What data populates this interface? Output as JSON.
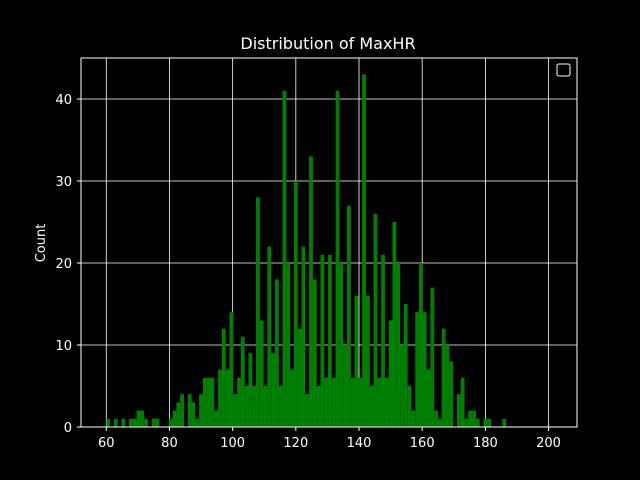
{
  "chart_data": {
    "type": "bar",
    "title": "Distribution of MaxHR",
    "xlabel": "",
    "ylabel": "Count",
    "xlim": [
      52,
      209
    ],
    "ylim": [
      0,
      45
    ],
    "xticks": [
      "60",
      "80",
      "100",
      "120",
      "140",
      "160",
      "180",
      "200"
    ],
    "yticks": [
      "0",
      "10",
      "20",
      "30",
      "40"
    ],
    "grid": true,
    "legend": "top-right",
    "colors": {
      "background": "#000000",
      "bar": "#008000",
      "axes": "#ffffff",
      "grid": "#ffffff"
    },
    "bin_width": 1.2,
    "bins": [
      {
        "x": 60.6,
        "y": 1
      },
      {
        "x": 63.0,
        "y": 1
      },
      {
        "x": 65.4,
        "y": 1
      },
      {
        "x": 67.8,
        "y": 1
      },
      {
        "x": 69.0,
        "y": 1
      },
      {
        "x": 70.2,
        "y": 2
      },
      {
        "x": 71.4,
        "y": 2
      },
      {
        "x": 72.6,
        "y": 1
      },
      {
        "x": 75.0,
        "y": 1
      },
      {
        "x": 76.2,
        "y": 1
      },
      {
        "x": 80.4,
        "y": 1
      },
      {
        "x": 81.6,
        "y": 2
      },
      {
        "x": 82.8,
        "y": 3
      },
      {
        "x": 84.0,
        "y": 4
      },
      {
        "x": 86.4,
        "y": 4
      },
      {
        "x": 87.6,
        "y": 3
      },
      {
        "x": 88.8,
        "y": 1
      },
      {
        "x": 90.0,
        "y": 4
      },
      {
        "x": 91.2,
        "y": 6
      },
      {
        "x": 92.4,
        "y": 6
      },
      {
        "x": 93.6,
        "y": 6
      },
      {
        "x": 94.8,
        "y": 2
      },
      {
        "x": 96.0,
        "y": 7
      },
      {
        "x": 97.2,
        "y": 12
      },
      {
        "x": 98.4,
        "y": 7
      },
      {
        "x": 99.6,
        "y": 14
      },
      {
        "x": 100.8,
        "y": 4
      },
      {
        "x": 102.0,
        "y": 6
      },
      {
        "x": 103.2,
        "y": 11
      },
      {
        "x": 104.4,
        "y": 5
      },
      {
        "x": 105.6,
        "y": 9
      },
      {
        "x": 106.8,
        "y": 5
      },
      {
        "x": 108.0,
        "y": 28
      },
      {
        "x": 109.2,
        "y": 13
      },
      {
        "x": 110.4,
        "y": 5
      },
      {
        "x": 111.6,
        "y": 22
      },
      {
        "x": 112.8,
        "y": 9
      },
      {
        "x": 114.0,
        "y": 18
      },
      {
        "x": 115.2,
        "y": 5
      },
      {
        "x": 116.4,
        "y": 41
      },
      {
        "x": 117.6,
        "y": 20
      },
      {
        "x": 118.8,
        "y": 7
      },
      {
        "x": 120.0,
        "y": 30
      },
      {
        "x": 121.2,
        "y": 12
      },
      {
        "x": 122.4,
        "y": 22
      },
      {
        "x": 123.6,
        "y": 4
      },
      {
        "x": 124.8,
        "y": 33
      },
      {
        "x": 126.0,
        "y": 18
      },
      {
        "x": 127.2,
        "y": 5
      },
      {
        "x": 128.4,
        "y": 21
      },
      {
        "x": 129.6,
        "y": 6
      },
      {
        "x": 130.8,
        "y": 21
      },
      {
        "x": 132.0,
        "y": 6
      },
      {
        "x": 133.2,
        "y": 41
      },
      {
        "x": 134.4,
        "y": 20
      },
      {
        "x": 135.6,
        "y": 10
      },
      {
        "x": 136.8,
        "y": 27
      },
      {
        "x": 138.0,
        "y": 6
      },
      {
        "x": 139.2,
        "y": 16
      },
      {
        "x": 140.4,
        "y": 6
      },
      {
        "x": 141.6,
        "y": 43
      },
      {
        "x": 142.8,
        "y": 16
      },
      {
        "x": 144.0,
        "y": 5
      },
      {
        "x": 145.2,
        "y": 26
      },
      {
        "x": 146.4,
        "y": 6
      },
      {
        "x": 147.6,
        "y": 21
      },
      {
        "x": 148.8,
        "y": 6
      },
      {
        "x": 150.0,
        "y": 13
      },
      {
        "x": 151.2,
        "y": 25
      },
      {
        "x": 152.4,
        "y": 20
      },
      {
        "x": 153.6,
        "y": 10
      },
      {
        "x": 154.8,
        "y": 15
      },
      {
        "x": 156.0,
        "y": 5
      },
      {
        "x": 157.2,
        "y": 2
      },
      {
        "x": 158.4,
        "y": 14
      },
      {
        "x": 159.6,
        "y": 20
      },
      {
        "x": 160.8,
        "y": 14
      },
      {
        "x": 162.0,
        "y": 7
      },
      {
        "x": 163.2,
        "y": 17
      },
      {
        "x": 164.4,
        "y": 2
      },
      {
        "x": 165.6,
        "y": 1
      },
      {
        "x": 166.8,
        "y": 12
      },
      {
        "x": 168.0,
        "y": 10
      },
      {
        "x": 169.2,
        "y": 8
      },
      {
        "x": 171.6,
        "y": 4
      },
      {
        "x": 172.8,
        "y": 6
      },
      {
        "x": 174.0,
        "y": 1
      },
      {
        "x": 175.2,
        "y": 2
      },
      {
        "x": 176.4,
        "y": 2
      },
      {
        "x": 177.6,
        "y": 1
      },
      {
        "x": 180.0,
        "y": 1
      },
      {
        "x": 181.2,
        "y": 1
      },
      {
        "x": 186.0,
        "y": 1
      }
    ]
  }
}
